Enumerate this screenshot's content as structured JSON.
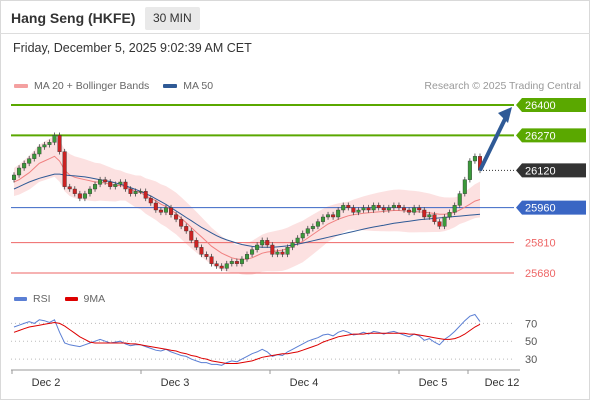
{
  "header": {
    "title": "Hang Seng (HKFE)",
    "timeframe": "30 MIN",
    "datetime": "Friday, December 5, 2025 9:02:39 AM CET"
  },
  "legend": {
    "items": [
      {
        "label": "MA 20 + Bollinger Bands",
        "color": "#f08080"
      },
      {
        "label": "MA 50",
        "color": "#2f5a96"
      }
    ],
    "credit": "Research © 2025 Trading Central"
  },
  "rsi_legend": {
    "items": [
      {
        "label": "RSI",
        "color": "#5b7fd4"
      },
      {
        "label": "9MA",
        "color": "#dd0000"
      }
    ]
  },
  "chart_data": [
    {
      "type": "candlestick",
      "x_labels": [
        "Dec 2",
        "Dec 3",
        "Dec 4",
        "Dec 5",
        "Dec 12"
      ],
      "ylim": [
        25650,
        26430
      ],
      "levels": [
        {
          "value": 26400,
          "kind": "resistance",
          "color": "#5aa800"
        },
        {
          "value": 26270,
          "kind": "resistance",
          "color": "#5aa800"
        },
        {
          "value": 26120,
          "kind": "last",
          "color": "#333333"
        },
        {
          "value": 25960,
          "kind": "pivot",
          "color": "#3a66c4"
        },
        {
          "value": 25810,
          "kind": "support",
          "color": "#ee6666"
        },
        {
          "value": 25680,
          "kind": "support",
          "color": "#ee6666"
        }
      ],
      "close_series": [
        26100,
        26130,
        26150,
        26170,
        26190,
        26220,
        26230,
        26240,
        26270,
        26200,
        26050,
        26040,
        26020,
        26000,
        26020,
        26040,
        26060,
        26080,
        26070,
        26050,
        26060,
        26070,
        26040,
        26020,
        26030,
        26030,
        26000,
        25980,
        25950,
        25940,
        25960,
        25930,
        25910,
        25880,
        25860,
        25820,
        25790,
        25760,
        25750,
        25720,
        25710,
        25700,
        25720,
        25730,
        25720,
        25740,
        25760,
        25780,
        25800,
        25820,
        25800,
        25760,
        25770,
        25760,
        25790,
        25810,
        25830,
        25850,
        25870,
        25880,
        25900,
        25920,
        25930,
        25920,
        25950,
        25970,
        25960,
        25940,
        25950,
        25960,
        25950,
        25970,
        25960,
        25950,
        25960,
        25970,
        25960,
        25950,
        25940,
        25960,
        25950,
        25920,
        25930,
        25900,
        25880,
        25920,
        25940,
        25970,
        26020,
        26080,
        26160,
        26180,
        26120
      ],
      "ma20": [
        26070,
        26080,
        26095,
        26110,
        26130,
        26150,
        26160,
        26170,
        26180,
        26160,
        26120,
        26100,
        26090,
        26085,
        26080,
        26075,
        26070,
        26070,
        26065,
        26060,
        26055,
        26055,
        26050,
        26040,
        26030,
        26025,
        26010,
        26000,
        25990,
        25975,
        25965,
        25950,
        25935,
        25915,
        25895,
        25875,
        25855,
        25835,
        25815,
        25795,
        25780,
        25765,
        25755,
        25745,
        25740,
        25738,
        25740,
        25745,
        25755,
        25765,
        25770,
        25772,
        25775,
        25778,
        25785,
        25795,
        25805,
        25815,
        25830,
        25845,
        25860,
        25875,
        25890,
        25900,
        25910,
        25918,
        25925,
        25930,
        25933,
        25936,
        25938,
        25940,
        25942,
        25944,
        25946,
        25948,
        25948,
        25946,
        25944,
        25943,
        25942,
        25940,
        25938,
        25935,
        25932,
        25932,
        25935,
        25940,
        25950,
        25962,
        25975,
        25988,
        25995
      ],
      "ma50": [
        26040,
        26050,
        26060,
        26070,
        26078,
        26086,
        26092,
        26098,
        26104,
        26104,
        26100,
        26098,
        26096,
        26094,
        26092,
        26088,
        26084,
        26080,
        26076,
        26072,
        26066,
        26060,
        26054,
        26046,
        26038,
        26030,
        26020,
        26010,
        25998,
        25986,
        25974,
        25960,
        25946,
        25932,
        25918,
        25904,
        25890,
        25876,
        25864,
        25852,
        25840,
        25830,
        25822,
        25815,
        25808,
        25802,
        25798,
        25794,
        25792,
        25790,
        25790,
        25790,
        25792,
        25794,
        25796,
        25800,
        25804,
        25808,
        25813,
        25818,
        25823,
        25828,
        25833,
        25838,
        25843,
        25848,
        25853,
        25858,
        25863,
        25868,
        25873,
        25877,
        25881,
        25885,
        25889,
        25893,
        25896,
        25899,
        25902,
        25905,
        25908,
        25910,
        25912,
        25914,
        25916,
        25918,
        25920,
        25922,
        25924,
        25926,
        25928,
        25930,
        25932
      ]
    },
    {
      "type": "line",
      "name": "RSI",
      "y_ticks": [
        70,
        50,
        30
      ],
      "ylim": [
        20,
        85
      ],
      "series": [
        {
          "name": "RSI",
          "values": [
            66,
            68,
            70,
            72,
            70,
            74,
            73,
            71,
            74,
            60,
            48,
            46,
            45,
            44,
            46,
            48,
            50,
            52,
            50,
            48,
            49,
            50,
            47,
            45,
            46,
            46,
            44,
            42,
            40,
            39,
            41,
            38,
            36,
            34,
            33,
            30,
            28,
            26,
            26,
            24,
            24,
            23,
            26,
            28,
            27,
            30,
            33,
            36,
            38,
            41,
            38,
            33,
            35,
            34,
            38,
            41,
            44,
            47,
            50,
            52,
            54,
            57,
            58,
            56,
            60,
            62,
            60,
            57,
            58,
            60,
            58,
            61,
            60,
            58,
            60,
            61,
            59,
            57,
            55,
            58,
            56,
            51,
            53,
            49,
            46,
            52,
            56,
            61,
            67,
            73,
            78,
            80,
            72
          ]
        },
        {
          "name": "9MA",
          "values": [
            60,
            62,
            64,
            66,
            67,
            68,
            69,
            70,
            71,
            70,
            67,
            63,
            59,
            55,
            52,
            49,
            48,
            48,
            48,
            48,
            48,
            48,
            48,
            47,
            47,
            46,
            45,
            44,
            43,
            42,
            41,
            40,
            39,
            37,
            36,
            34,
            33,
            31,
            30,
            28,
            27,
            26,
            25,
            25,
            25,
            26,
            27,
            28,
            30,
            32,
            33,
            34,
            35,
            36,
            36,
            37,
            38,
            40,
            42,
            44,
            46,
            49,
            51,
            53,
            55,
            56,
            57,
            58,
            58,
            58,
            59,
            59,
            59,
            59,
            59,
            59,
            59,
            59,
            58,
            58,
            57,
            56,
            55,
            54,
            53,
            52,
            52,
            53,
            55,
            58,
            62,
            66,
            69
          ]
        }
      ]
    }
  ]
}
